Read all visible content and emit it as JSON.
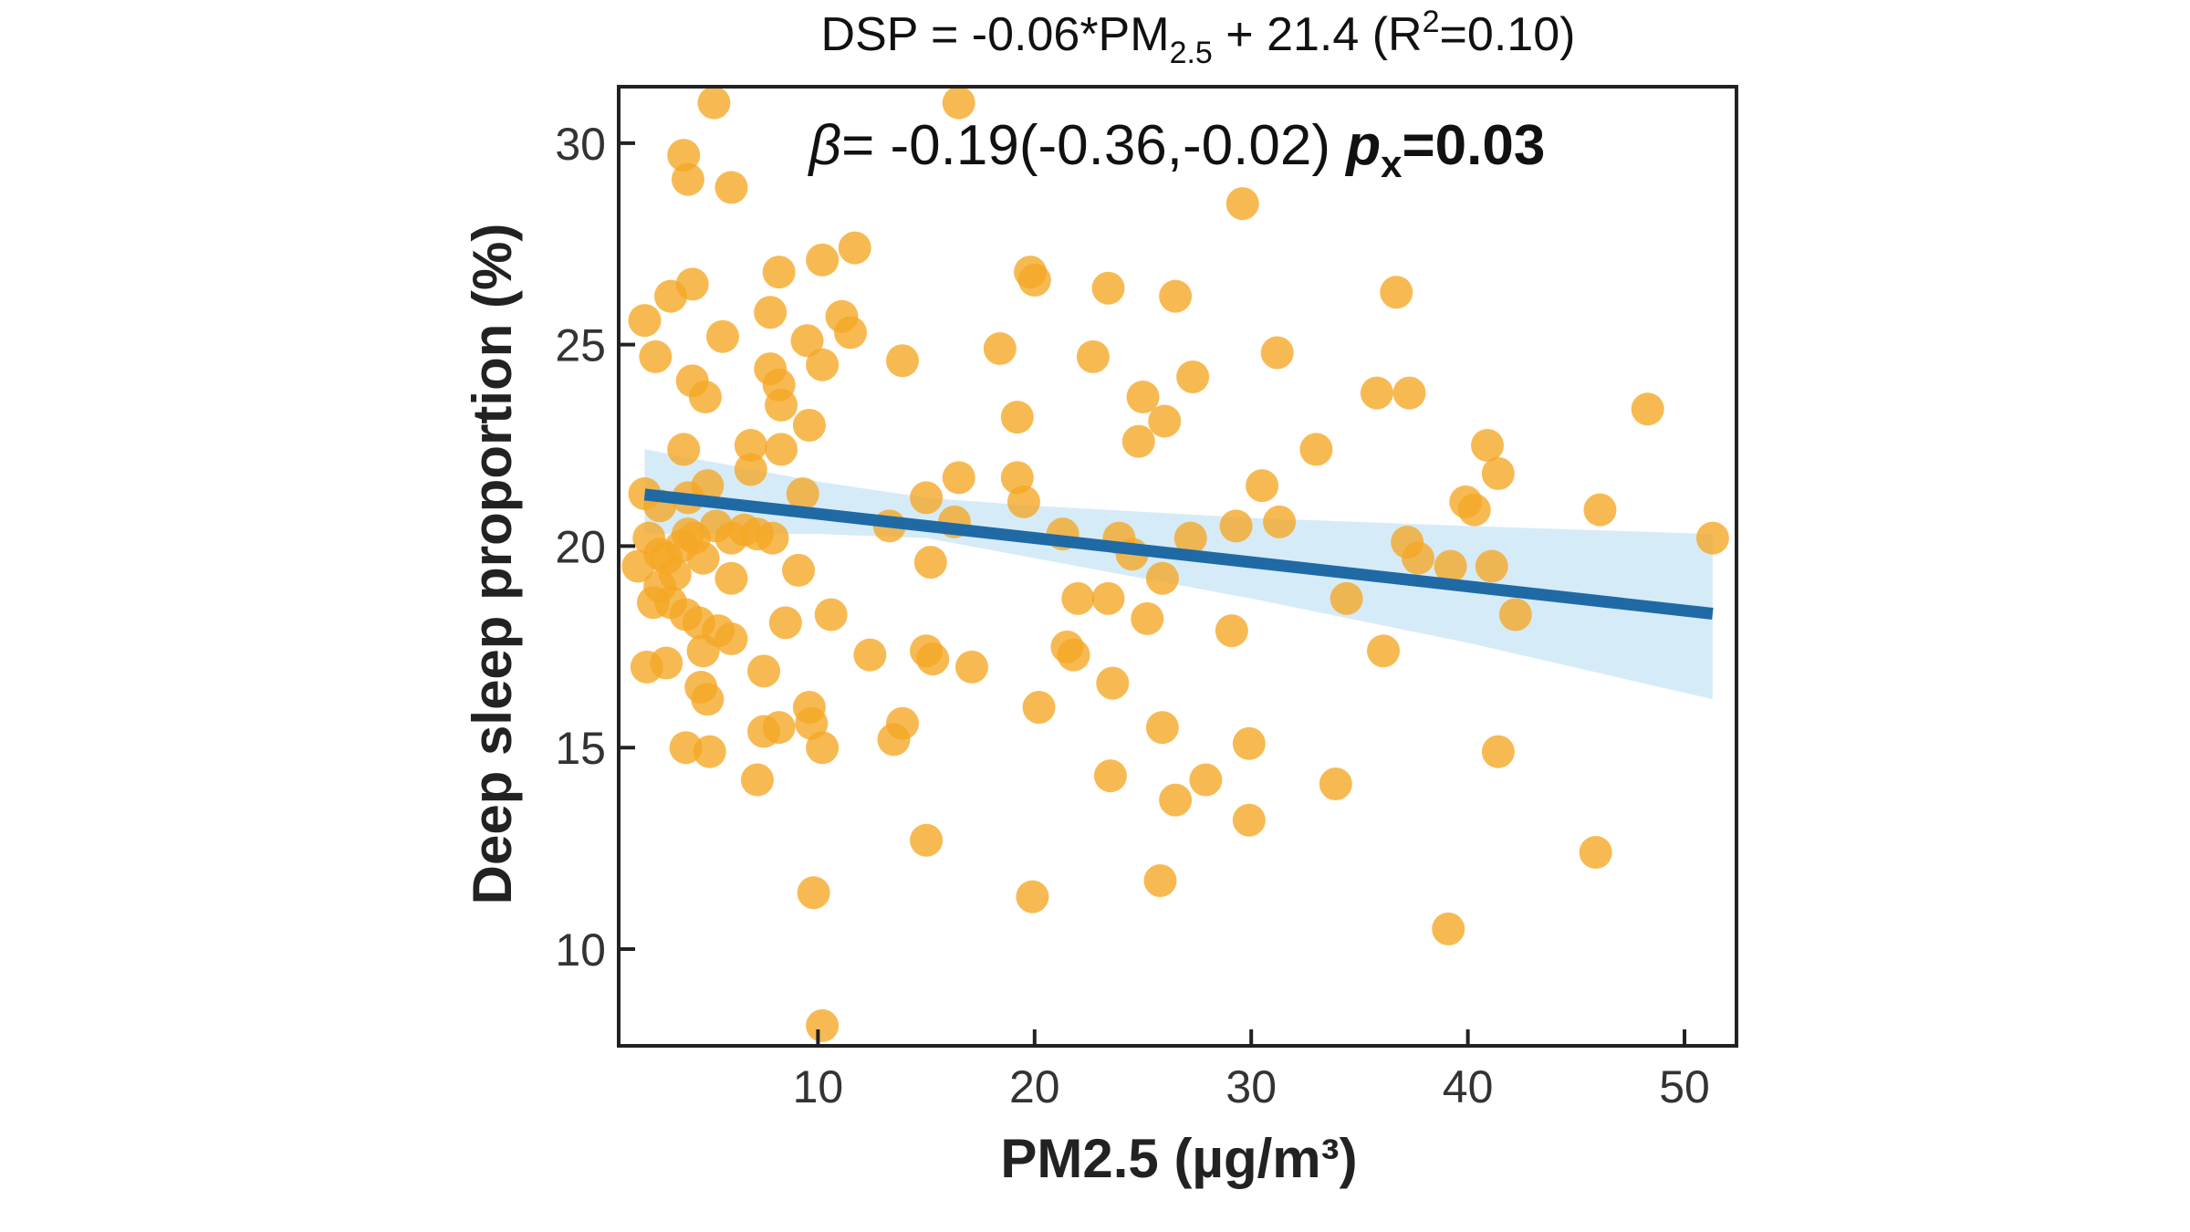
{
  "chart_data": {
    "type": "scatter",
    "title": {
      "prefix": "DSP = -0.06*PM",
      "sub": "2.5",
      "mid": " + 21.4 (R",
      "sup": "2",
      "suffix": "=0.10)"
    },
    "annotation": {
      "beta_symbol": "β",
      "beta_text": "= -0.19(-0.36,-0.02) ",
      "p_symbol": "p",
      "p_sub": "x",
      "p_value": "=0.03"
    },
    "xlabel": "PM2.5 (µg/m³)",
    "ylabel": "Deep sleep proportion (%)",
    "xlim": [
      0.8,
      52.4
    ],
    "ylim": [
      7.6,
      31.4
    ],
    "xticks": [
      10,
      20,
      30,
      40,
      50
    ],
    "yticks": [
      10,
      15,
      20,
      25,
      30
    ],
    "grid": false,
    "colors": {
      "points": "#f5a623",
      "line": "#1f6aa5",
      "band": "#cfe8f7"
    },
    "regression": {
      "slope": -0.06,
      "intercept": 21.4,
      "x_range": [
        2,
        51.3
      ]
    },
    "confidence_band": {
      "x": [
        2,
        10,
        15,
        20,
        30,
        40,
        51.3
      ],
      "lower": [
        20.3,
        20.3,
        20.2,
        19.7,
        18.7,
        17.6,
        16.2
      ],
      "upper": [
        22.4,
        21.6,
        21.2,
        21.0,
        20.7,
        20.5,
        20.3
      ]
    },
    "points": [
      [
        5.2,
        31.0
      ],
      [
        16.5,
        31.0
      ],
      [
        3.8,
        29.7
      ],
      [
        4.0,
        29.1
      ],
      [
        6.0,
        28.9
      ],
      [
        29.6,
        28.5
      ],
      [
        11.7,
        27.4
      ],
      [
        10.2,
        27.1
      ],
      [
        19.8,
        26.8
      ],
      [
        20.0,
        26.6
      ],
      [
        8.2,
        26.8
      ],
      [
        4.2,
        26.5
      ],
      [
        3.2,
        26.2
      ],
      [
        23.4,
        26.4
      ],
      [
        26.5,
        26.2
      ],
      [
        36.7,
        26.3
      ],
      [
        7.8,
        25.8
      ],
      [
        11.1,
        25.7
      ],
      [
        9.5,
        25.1
      ],
      [
        11.5,
        25.3
      ],
      [
        2.0,
        25.6
      ],
      [
        5.6,
        25.2
      ],
      [
        2.5,
        24.7
      ],
      [
        13.9,
        24.6
      ],
      [
        18.4,
        24.9
      ],
      [
        22.7,
        24.7
      ],
      [
        31.2,
        24.8
      ],
      [
        10.2,
        24.5
      ],
      [
        7.8,
        24.4
      ],
      [
        8.2,
        24.0
      ],
      [
        4.2,
        24.1
      ],
      [
        4.8,
        23.7
      ],
      [
        27.3,
        24.2
      ],
      [
        25.0,
        23.7
      ],
      [
        35.8,
        23.8
      ],
      [
        37.3,
        23.8
      ],
      [
        48.3,
        23.4
      ],
      [
        8.3,
        23.5
      ],
      [
        19.2,
        23.2
      ],
      [
        26.0,
        23.1
      ],
      [
        9.6,
        23.0
      ],
      [
        24.8,
        22.6
      ],
      [
        33.0,
        22.4
      ],
      [
        40.9,
        22.5
      ],
      [
        3.8,
        22.4
      ],
      [
        6.9,
        22.5
      ],
      [
        8.3,
        22.4
      ],
      [
        19.2,
        21.7
      ],
      [
        16.5,
        21.7
      ],
      [
        30.5,
        21.5
      ],
      [
        41.4,
        21.8
      ],
      [
        2.0,
        21.3
      ],
      [
        9.3,
        21.3
      ],
      [
        4.9,
        21.5
      ],
      [
        6.9,
        21.9
      ],
      [
        19.5,
        21.1
      ],
      [
        15.0,
        21.2
      ],
      [
        39.9,
        21.1
      ],
      [
        40.3,
        20.9
      ],
      [
        46.1,
        20.9
      ],
      [
        13.3,
        20.5
      ],
      [
        16.3,
        20.6
      ],
      [
        29.3,
        20.5
      ],
      [
        31.3,
        20.6
      ],
      [
        21.3,
        20.3
      ],
      [
        23.9,
        20.2
      ],
      [
        27.2,
        20.2
      ],
      [
        51.3,
        20.2
      ],
      [
        37.2,
        20.1
      ],
      [
        24.5,
        19.8
      ],
      [
        37.7,
        19.7
      ],
      [
        39.2,
        19.5
      ],
      [
        41.1,
        19.5
      ],
      [
        15.2,
        19.6
      ],
      [
        25.9,
        19.2
      ],
      [
        9.1,
        19.4
      ],
      [
        6.0,
        19.2
      ],
      [
        29.1,
        17.9
      ],
      [
        22.0,
        18.7
      ],
      [
        23.4,
        18.7
      ],
      [
        25.2,
        18.2
      ],
      [
        10.6,
        18.3
      ],
      [
        8.5,
        18.1
      ],
      [
        42.2,
        18.3
      ],
      [
        34.4,
        18.7
      ],
      [
        36.1,
        17.4
      ],
      [
        21.5,
        17.5
      ],
      [
        21.8,
        17.3
      ],
      [
        12.4,
        17.3
      ],
      [
        15.0,
        17.4
      ],
      [
        15.3,
        17.2
      ],
      [
        17.1,
        17.0
      ],
      [
        7.5,
        16.9
      ],
      [
        2.1,
        17.0
      ],
      [
        3.0,
        17.1
      ],
      [
        4.6,
        16.5
      ],
      [
        4.9,
        16.2
      ],
      [
        23.6,
        16.6
      ],
      [
        20.2,
        16.0
      ],
      [
        9.6,
        16.0
      ],
      [
        9.7,
        15.6
      ],
      [
        8.2,
        15.5
      ],
      [
        7.5,
        15.4
      ],
      [
        13.9,
        15.6
      ],
      [
        25.9,
        15.5
      ],
      [
        29.9,
        15.1
      ],
      [
        13.5,
        15.2
      ],
      [
        10.2,
        15.0
      ],
      [
        3.9,
        15.0
      ],
      [
        5.0,
        14.9
      ],
      [
        41.4,
        14.9
      ],
      [
        7.2,
        14.2
      ],
      [
        23.5,
        14.3
      ],
      [
        27.9,
        14.2
      ],
      [
        26.5,
        13.7
      ],
      [
        33.9,
        14.1
      ],
      [
        29.9,
        13.2
      ],
      [
        15.0,
        12.7
      ],
      [
        45.9,
        12.4
      ],
      [
        25.8,
        11.7
      ],
      [
        9.8,
        11.4
      ],
      [
        19.9,
        11.3
      ],
      [
        39.1,
        10.5
      ],
      [
        10.2,
        8.1
      ],
      [
        2.2,
        20.2
      ],
      [
        2.7,
        19.8
      ],
      [
        3.0,
        19.7
      ],
      [
        3.7,
        20.0
      ],
      [
        4.0,
        20.3
      ],
      [
        3.4,
        19.3
      ],
      [
        2.7,
        19.0
      ],
      [
        3.2,
        18.6
      ],
      [
        4.3,
        20.2
      ],
      [
        4.7,
        19.7
      ],
      [
        5.3,
        20.5
      ],
      [
        6.0,
        20.2
      ],
      [
        6.6,
        20.4
      ],
      [
        7.2,
        20.3
      ],
      [
        7.9,
        20.2
      ],
      [
        3.9,
        18.3
      ],
      [
        4.5,
        18.1
      ],
      [
        5.4,
        17.9
      ],
      [
        6.0,
        17.7
      ],
      [
        4.7,
        17.4
      ],
      [
        2.7,
        21.0
      ],
      [
        4.0,
        21.2
      ],
      [
        2.4,
        18.6
      ],
      [
        1.7,
        19.5
      ]
    ]
  }
}
